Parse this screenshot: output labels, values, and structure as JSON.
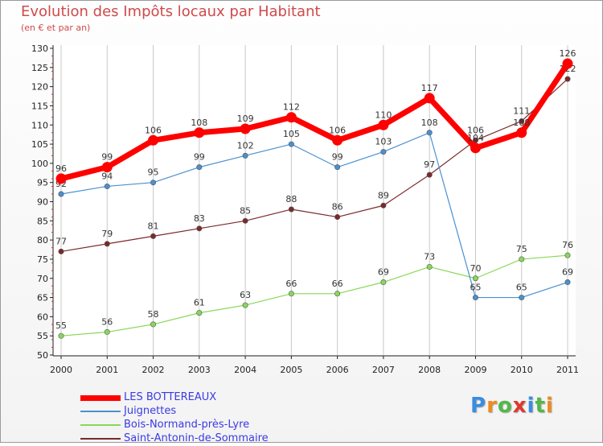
{
  "title": "Evolution des Impôts locaux par Habitant",
  "subtitle": "(en € et par an)",
  "logo": "Proxiti",
  "chart_data": {
    "type": "line",
    "x": [
      "2000",
      "2001",
      "2002",
      "2003",
      "2004",
      "2005",
      "2006",
      "2007",
      "2008",
      "2009",
      "2010",
      "2011"
    ],
    "ylim": [
      50,
      130
    ],
    "yticks": [
      50,
      55,
      60,
      65,
      70,
      75,
      80,
      85,
      90,
      95,
      100,
      105,
      110,
      115,
      120,
      125,
      130
    ],
    "grid": "vertical",
    "legend_position": "bottom",
    "series": [
      {
        "name": "LES BOTTEREAUX",
        "color": "#ff0000",
        "values": [
          96,
          99,
          106,
          108,
          109,
          112,
          106,
          110,
          117,
          104,
          108,
          126
        ]
      },
      {
        "name": "Juignettes",
        "color": "#4a90d0",
        "values": [
          92,
          94,
          95,
          99,
          102,
          105,
          99,
          103,
          108,
          65,
          65,
          69
        ]
      },
      {
        "name": "Bois-Normand-près-Lyre",
        "color": "#88d858",
        "values": [
          55,
          56,
          58,
          61,
          63,
          66,
          66,
          69,
          73,
          70,
          75,
          76
        ]
      },
      {
        "name": "Saint-Antonin-de-Sommaire",
        "color": "#7a2a2a",
        "values": [
          77,
          79,
          81,
          83,
          85,
          88,
          86,
          89,
          97,
          106,
          111,
          122
        ]
      }
    ]
  }
}
